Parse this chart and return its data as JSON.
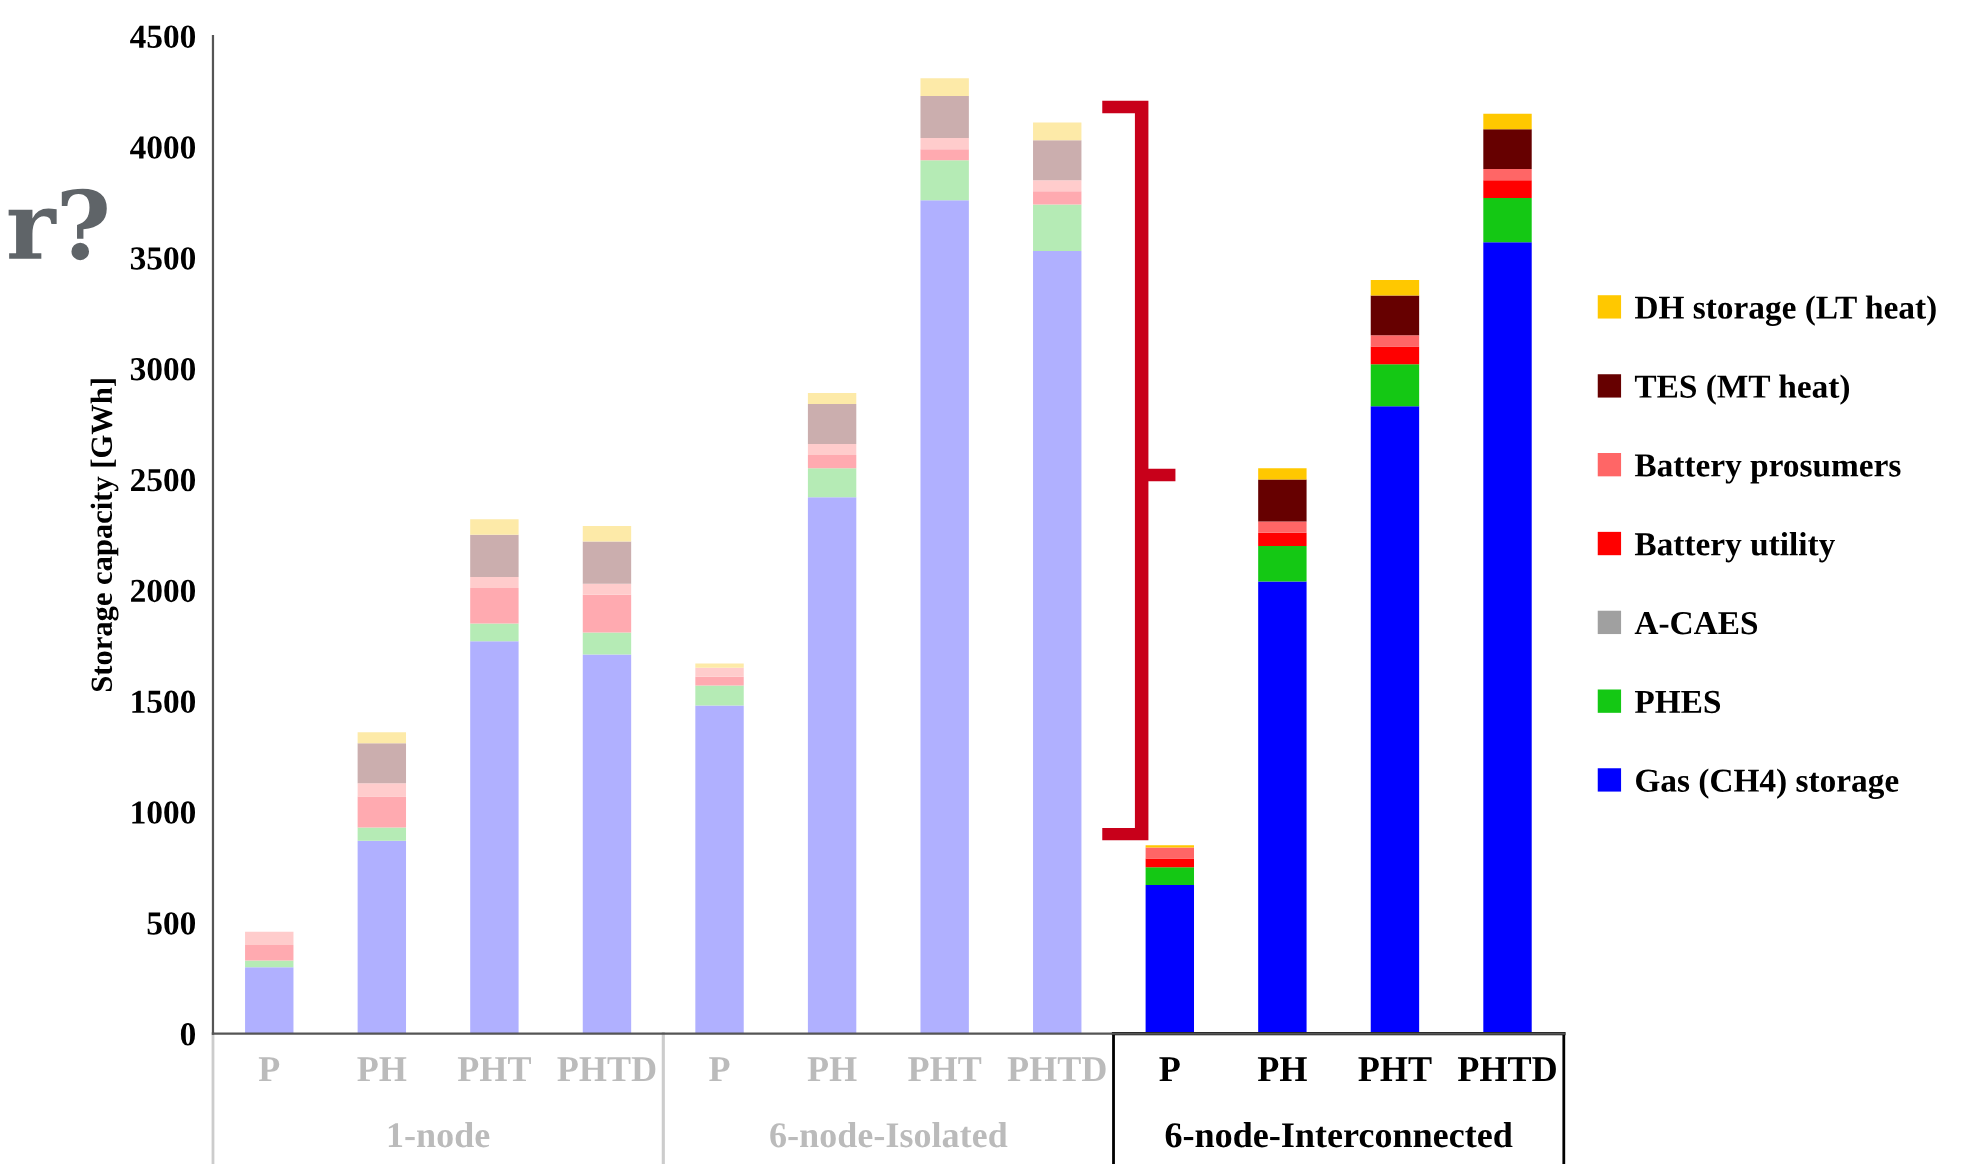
{
  "chart_data": {
    "type": "bar",
    "stacked": true,
    "ylabel": "Storage capacity [GWh]",
    "categories": [
      "P",
      "PH",
      "PHT",
      "PHTD",
      "P",
      "PH",
      "PHT",
      "PHTD",
      "P",
      "PH",
      "PHT",
      "PHTD"
    ],
    "annotations": [
      "r?",
      "1-node",
      "6-node-Isolated",
      "6-node-Interconnected"
    ],
    "ylim": [
      0,
      4500
    ],
    "yticks": [
      0,
      500,
      1000,
      1500,
      2000,
      2500,
      3000,
      3500,
      4000,
      4500
    ],
    "grid": false,
    "legend": "right",
    "series": [
      {
        "name": "Gas (CH4) storage",
        "colors": [
          "#b0b0ff",
          "#b0b0ff",
          "#b0b0ff",
          "#b0b0ff",
          "#b0b0ff",
          "#b0b0ff",
          "#b0b0ff",
          "#b0b0ff",
          "#0000ff",
          "#0000ff",
          "#0000ff",
          "#0000ff"
        ],
        "values": [
          300,
          870,
          1770,
          1710,
          1480,
          2420,
          3760,
          3530,
          670,
          2040,
          2830,
          3570
        ]
      },
      {
        "name": "PHES",
        "colors": [
          "#b5ebb5",
          "#b5ebb5",
          "#b5ebb5",
          "#b5ebb5",
          "#b5ebb5",
          "#b5ebb5",
          "#b5ebb5",
          "#b5ebb5",
          "#14c814",
          "#14c814",
          "#14c814",
          "#14c814"
        ],
        "values": [
          30,
          60,
          80,
          100,
          90,
          130,
          180,
          210,
          80,
          160,
          190,
          200
        ]
      },
      {
        "name": "A-CAES",
        "colors": [
          "#d0d0d0",
          "#d0d0d0",
          "#d0d0d0",
          "#d0d0d0",
          "#d0d0d0",
          "#d0d0d0",
          "#d0d0d0",
          "#d0d0d0",
          "#a0a0a0",
          "#a0a0a0",
          "#a0a0a0",
          "#a0a0a0"
        ],
        "values": [
          0,
          0,
          0,
          0,
          0,
          0,
          0,
          0,
          0,
          0,
          0,
          0
        ]
      },
      {
        "name": "Battery utility",
        "colors": [
          "#ffaab0",
          "#ffaab0",
          "#ffaab0",
          "#ffaab0",
          "#ffaab0",
          "#ffaab0",
          "#ffaab0",
          "#ffaab0",
          "#ff0000",
          "#ff0000",
          "#ff0000",
          "#ff0000"
        ],
        "values": [
          70,
          140,
          160,
          170,
          40,
          60,
          50,
          60,
          40,
          60,
          80,
          80
        ]
      },
      {
        "name": "Battery prosumers",
        "colors": [
          "#ffcccc",
          "#ffcccc",
          "#ffcccc",
          "#ffcccc",
          "#ffcccc",
          "#ffcccc",
          "#ffcccc",
          "#ffcccc",
          "#ff6666",
          "#ff6666",
          "#ff6666",
          "#ff6666"
        ],
        "values": [
          60,
          60,
          50,
          50,
          40,
          50,
          50,
          50,
          50,
          50,
          50,
          50
        ]
      },
      {
        "name": "TES (MT heat)",
        "colors": [
          "#cbaeae",
          "#cbaeae",
          "#cbaeae",
          "#cbaeae",
          "#cbaeae",
          "#cbaeae",
          "#cbaeae",
          "#cbaeae",
          "#660000",
          "#660000",
          "#660000",
          "#660000"
        ],
        "values": [
          0,
          180,
          190,
          190,
          0,
          180,
          190,
          180,
          0,
          190,
          180,
          180
        ]
      },
      {
        "name": "DH storage (LT heat)",
        "colors": [
          "#fdeaa8",
          "#fdeaa8",
          "#fdeaa8",
          "#fdeaa8",
          "#fdeaa8",
          "#fdeaa8",
          "#fdeaa8",
          "#fdeaa8",
          "#ffc800",
          "#ffc800",
          "#ffc800",
          "#ffc800"
        ],
        "values": [
          0,
          50,
          70,
          70,
          20,
          50,
          80,
          80,
          10,
          50,
          70,
          70
        ]
      }
    ]
  }
}
